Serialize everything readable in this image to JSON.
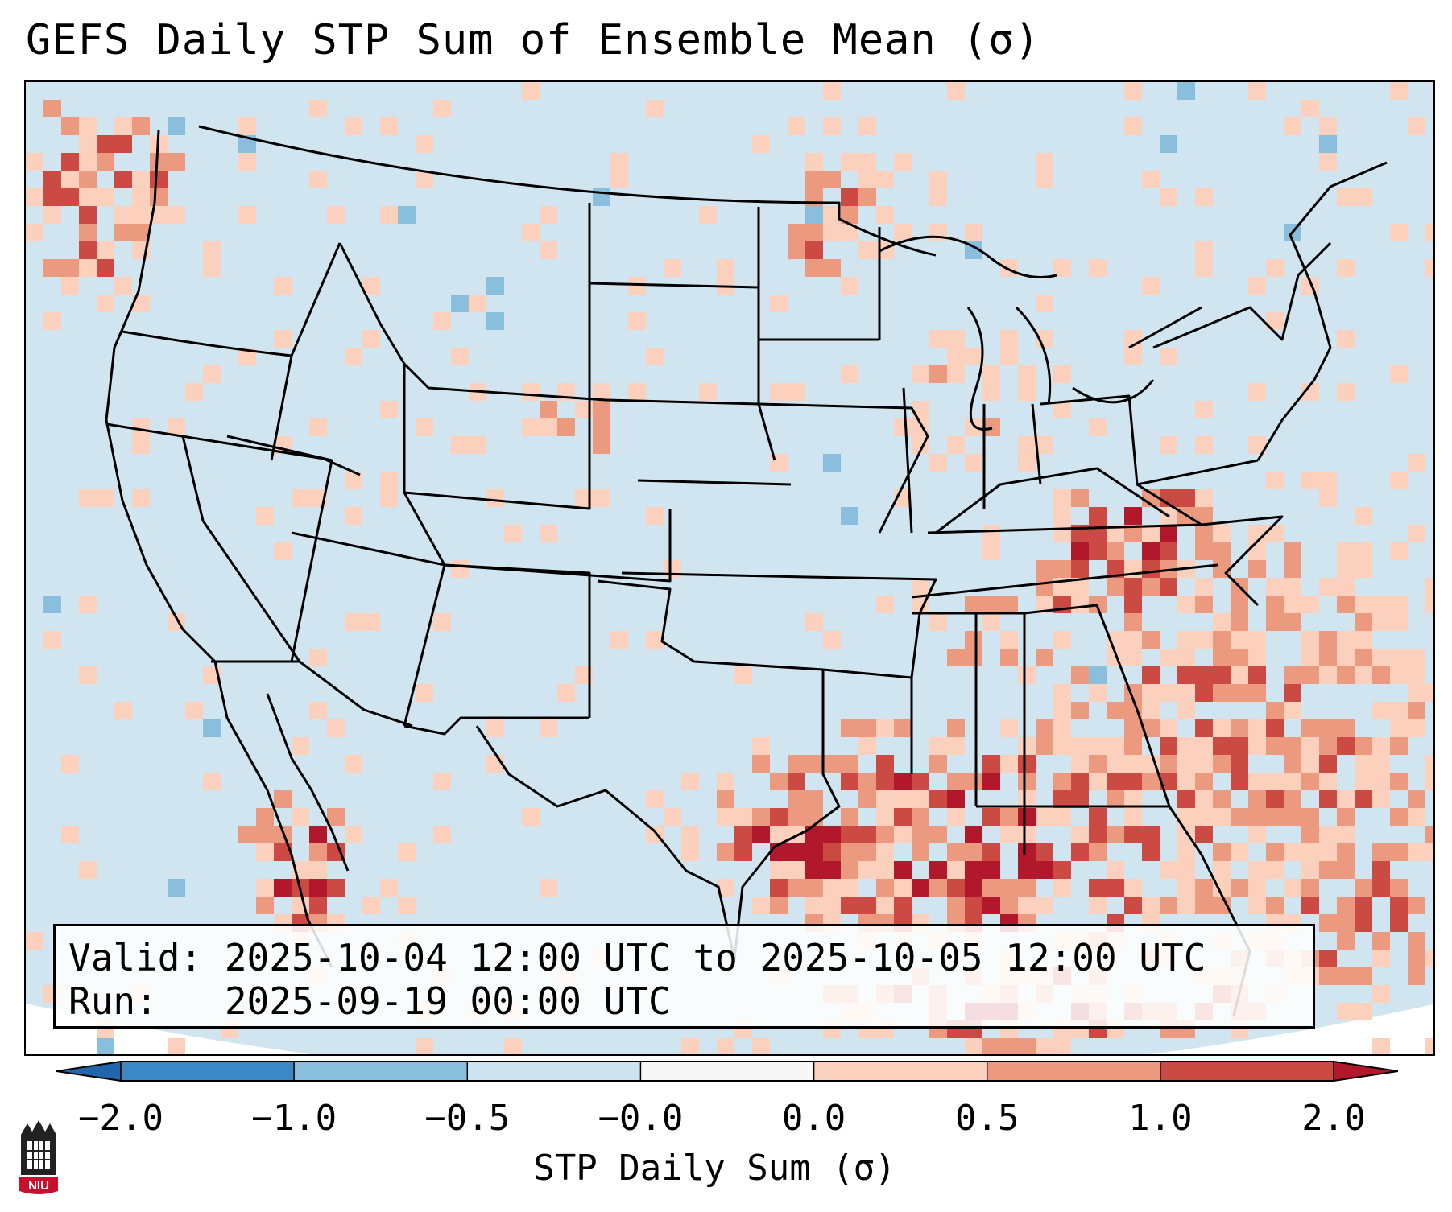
{
  "title": "GEFS Daily STP Sum of Ensemble Mean (σ)",
  "info": {
    "valid_line": "Valid: 2025-10-04 12:00 UTC to 2025-10-05 12:00 UTC",
    "run_line": "Run:   2025-09-19 00:00 UTC"
  },
  "colorbar": {
    "label": "STP Daily Sum (σ)",
    "ticks": [
      "−2.0",
      "−1.0",
      "−0.5",
      "−0.0",
      "0.0",
      "0.5",
      "1.0",
      "2.0"
    ],
    "colors": [
      "#3b88c4",
      "#89bedc",
      "#cfe3ef",
      "#f7f7f7",
      "#fbd1bd",
      "#ec9a7f",
      "#cc4a44"
    ],
    "under_color": "#2166ac",
    "over_color": "#b2182b"
  },
  "map": {
    "land_color": "#d1e5f0",
    "background_color": "#ffffff",
    "border_color": "#000000"
  },
  "logo": {
    "text": "NIU"
  }
}
